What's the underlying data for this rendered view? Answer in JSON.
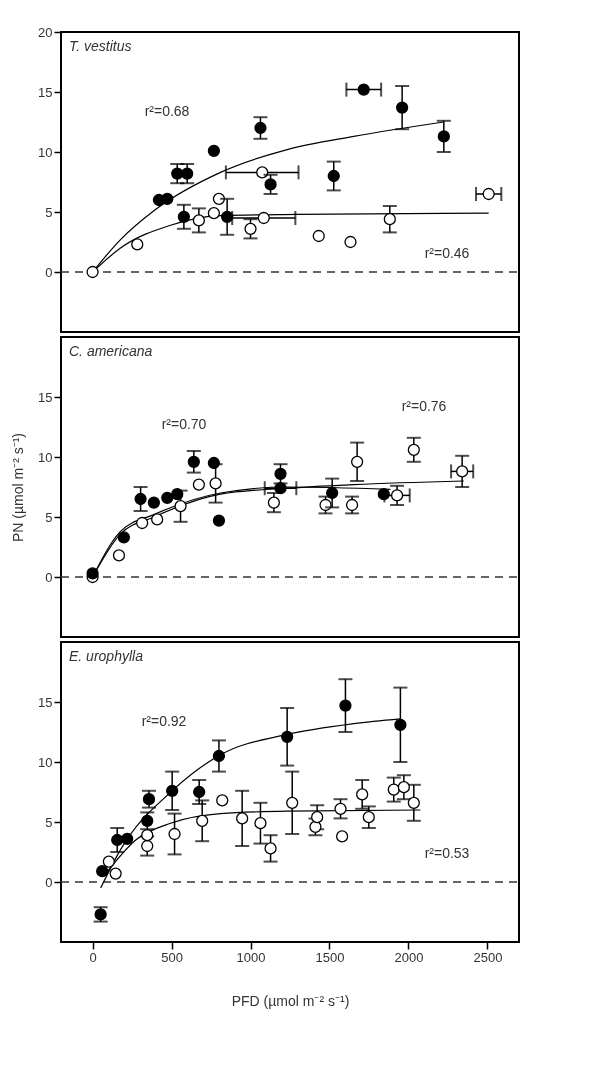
{
  "chart_data": [
    {
      "type": "scatter",
      "title": "T. vestitus",
      "xlim": [
        -200,
        2700
      ],
      "ylim": [
        -5,
        20
      ],
      "xticks": [
        0,
        500,
        1000,
        1500,
        2000,
        2500
      ],
      "yticks": [
        0,
        5,
        10,
        15,
        20
      ],
      "tick_labels": "y",
      "marker": "circle",
      "grid": false,
      "ref_lines": [
        {
          "axis": "y",
          "value": 0,
          "line_style": "dashed"
        }
      ],
      "annotations": [
        "r²=0.68",
        "r²=0.46"
      ],
      "series": [
        {
          "color": "#000000",
          "x": [
            420,
            473,
            536,
            599,
            768,
            1063,
            578,
            852,
            1127,
            1527,
            1717,
            1960,
            2224
          ],
          "values": [
            6.0,
            6.1,
            8.2,
            8.2,
            10.1,
            12.0,
            4.6,
            4.6,
            7.3,
            8.0,
            15.2,
            13.7,
            11.3
          ],
          "errors": [
            null,
            null,
            0.8,
            0.8,
            null,
            0.9,
            1.0,
            1.5,
            0.8,
            1.2,
            null,
            1.8,
            1.3
          ],
          "xerrors": [
            null,
            null,
            null,
            null,
            null,
            null,
            null,
            null,
            null,
            null,
            110,
            null,
            null
          ]
        },
        {
          "color": "#ffffff",
          "x": [
            0,
            283,
            673,
            768,
            800,
            1000,
            1074,
            1084,
            1432,
            1633,
            1882,
            2508
          ],
          "values": [
            0,
            2.3,
            4.3,
            4.9,
            6.1,
            3.6,
            8.3,
            4.5,
            3.0,
            2.5,
            4.4,
            6.5
          ],
          "errors": [
            null,
            null,
            1.0,
            null,
            null,
            0.8,
            null,
            null,
            null,
            null,
            1.1,
            null
          ],
          "xerrors": [
            null,
            null,
            null,
            null,
            null,
            null,
            230,
            200,
            null,
            null,
            null,
            80
          ]
        },
        {
          "type": "line",
          "color": "#000000",
          "line_style": "solid",
          "marker": "none",
          "x": [
            0,
            177,
            388,
            810,
            1232,
            1654,
            2224
          ],
          "values": [
            0,
            2.7,
            5.1,
            8.3,
            10.2,
            11.3,
            12.5
          ]
        },
        {
          "type": "line",
          "color": "#000000",
          "line_style": "solid",
          "marker": "none",
          "x": [
            0,
            177,
            494,
            810,
            1295,
            2508
          ],
          "values": [
            0,
            2.0,
            3.9,
            4.7,
            4.8,
            4.9
          ]
        }
      ]
    },
    {
      "type": "scatter",
      "title": "C. americana",
      "ylabel": "PN (µmol m⁻² s⁻¹)",
      "xlim": [
        -200,
        2700
      ],
      "ylim": [
        -5,
        20
      ],
      "xticks": [
        0,
        500,
        1000,
        1500,
        2000,
        2500
      ],
      "yticks": [
        0,
        5,
        10,
        15
      ],
      "tick_labels": "y",
      "marker": "circle",
      "grid": false,
      "ref_lines": [
        {
          "axis": "y",
          "value": 0,
          "line_style": "dashed"
        }
      ],
      "annotations": [
        "r²=0.70",
        "r²=0.76"
      ],
      "series": [
        {
          "color": "#000000",
          "x": [
            0,
            198,
            304,
            388,
            473,
            536,
            641,
            768,
            800,
            1190,
            1190,
            1517,
            1844
          ],
          "values": [
            0.3,
            3.3,
            6.5,
            6.2,
            6.6,
            6.9,
            9.6,
            9.5,
            4.7,
            8.6,
            7.4,
            7.0,
            6.9
          ],
          "errors": [
            null,
            null,
            1.0,
            null,
            null,
            null,
            0.9,
            null,
            null,
            0.8,
            null,
            1.2,
            null
          ],
          "xerrors": [
            null,
            null,
            null,
            null,
            null,
            null,
            null,
            null,
            null,
            null,
            100,
            null,
            null
          ]
        },
        {
          "color": "#ffffff",
          "x": [
            0,
            167,
            314,
            409,
            557,
            673,
            779,
            1148,
            1475,
            1643,
            1675,
            1928,
            2034,
            2340
          ],
          "values": [
            0,
            1.8,
            4.5,
            4.8,
            5.9,
            7.7,
            7.8,
            6.2,
            6.0,
            6.0,
            9.6,
            6.8,
            10.6,
            8.8
          ],
          "errors": [
            null,
            null,
            null,
            null,
            1.3,
            null,
            1.6,
            0.8,
            0.7,
            0.7,
            1.6,
            0.8,
            1.0,
            1.3
          ],
          "xerrors": [
            null,
            null,
            null,
            null,
            null,
            null,
            null,
            null,
            null,
            null,
            null,
            80,
            null,
            70
          ]
        },
        {
          "type": "line",
          "color": "#000000",
          "line_style": "solid",
          "marker": "none",
          "x": [
            0,
            177,
            388,
            810,
            1232,
            1886
          ],
          "values": [
            0,
            3.8,
            5.2,
            7.0,
            7.5,
            7.3
          ]
        },
        {
          "type": "line",
          "color": "#000000",
          "line_style": "solid",
          "marker": "none",
          "x": [
            0,
            177,
            388,
            810,
            1232,
            1654,
            2350
          ],
          "values": [
            0,
            3.6,
            5.0,
            6.9,
            7.4,
            7.7,
            8.0
          ]
        }
      ]
    },
    {
      "type": "scatter",
      "title": "E. urophylla",
      "xlabel": "PFD (µmol m⁻² s⁻¹)",
      "xlim": [
        -200,
        2700
      ],
      "ylim": [
        -5,
        20
      ],
      "xticks": [
        0,
        500,
        1000,
        1500,
        2000,
        2500
      ],
      "yticks": [
        0,
        5,
        10,
        15
      ],
      "marker": "circle",
      "grid": false,
      "ref_lines": [
        {
          "axis": "y",
          "value": 0,
          "line_style": "dashed"
        }
      ],
      "annotations": [
        "r²=0.92",
        "r²=0.53"
      ],
      "series": [
        {
          "color": "#000000",
          "x": [
            51,
            61,
            156,
            219,
            346,
            357,
            504,
            675,
            800,
            1232,
            1601,
            1949
          ],
          "values": [
            -2.7,
            0.9,
            3.5,
            3.6,
            5.1,
            6.9,
            7.6,
            7.5,
            10.5,
            12.1,
            14.7,
            13.1
          ],
          "errors": [
            0.6,
            null,
            1.0,
            null,
            0.7,
            0.7,
            1.6,
            1.0,
            1.3,
            2.4,
            2.2,
            3.1
          ]
        },
        {
          "color": "#ffffff",
          "x": [
            103,
            146,
            346,
            346,
            519,
            694,
            821,
            947,
            1063,
            1127,
            1264,
            1411,
            1422,
            1570,
            1580,
            1707,
            1749,
            1907,
            1971,
            2034
          ],
          "values": [
            1.7,
            0.7,
            3.0,
            3.9,
            4.0,
            5.1,
            6.8,
            5.3,
            4.9,
            2.8,
            6.6,
            4.6,
            5.4,
            6.1,
            3.8,
            7.3,
            5.4,
            7.7,
            7.9,
            6.6
          ],
          "errors": [
            null,
            null,
            0.8,
            null,
            1.7,
            1.7,
            null,
            2.3,
            1.7,
            1.1,
            2.6,
            0.7,
            1.0,
            0.8,
            null,
            1.2,
            0.9,
            1.0,
            1.0,
            1.5
          ]
        },
        {
          "type": "line",
          "color": "#000000",
          "line_style": "solid",
          "marker": "none",
          "x": [
            51,
            177,
            504,
            810,
            1232,
            1654,
            1949
          ],
          "values": [
            -0.5,
            2.7,
            7.6,
            10.6,
            12.3,
            13.2,
            13.6
          ]
        },
        {
          "type": "line",
          "color": "#000000",
          "line_style": "solid",
          "marker": "none",
          "x": [
            72,
            283,
            494,
            810,
            1232,
            2076
          ],
          "values": [
            0.5,
            3.6,
            4.9,
            5.7,
            5.9,
            6.0
          ]
        }
      ]
    }
  ]
}
